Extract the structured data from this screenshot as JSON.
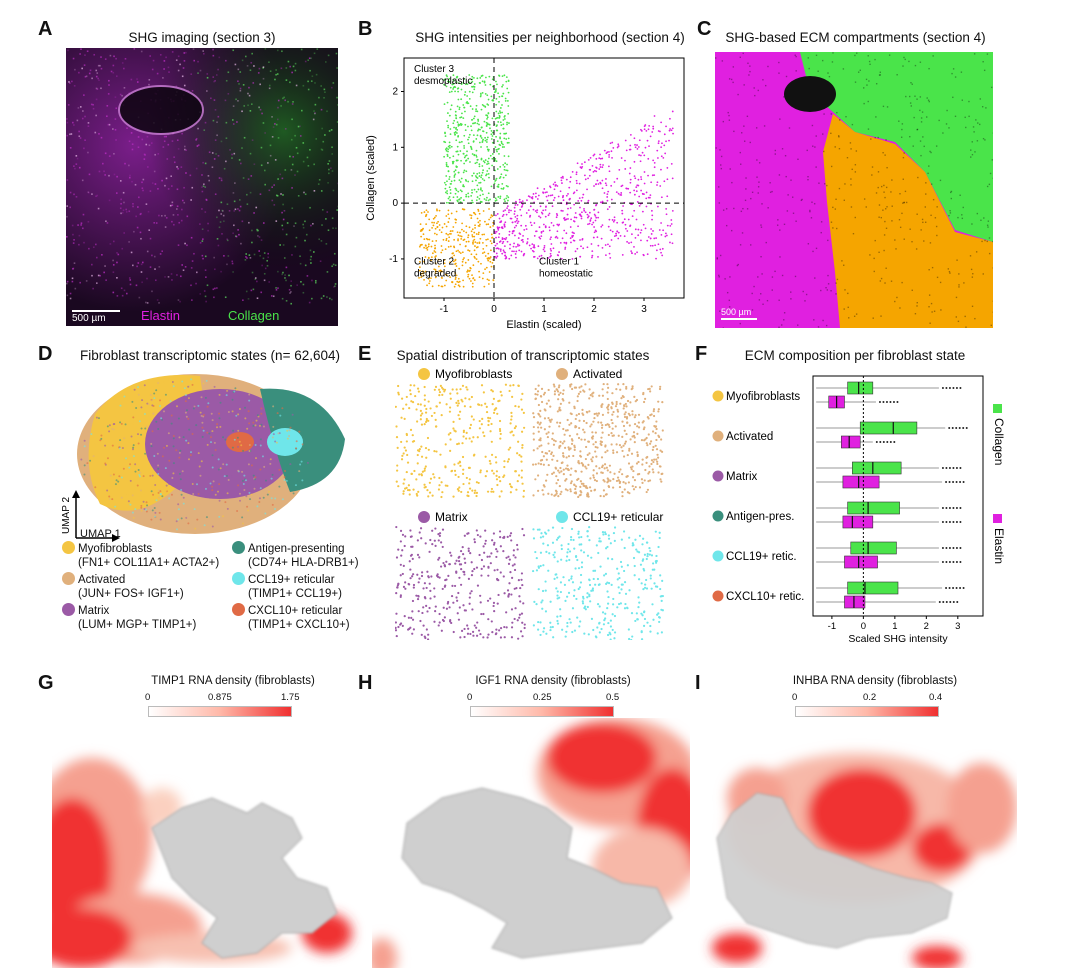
{
  "panels": {
    "A": {
      "letter": "A",
      "title": "SHG imaging (section 3)",
      "scale_label": "500 µm",
      "legend_elastin": "Elastin",
      "legend_collagen": "Collagen"
    },
    "B": {
      "letter": "B",
      "title": "SHG intensities per neighborhood (section 4)"
    },
    "C": {
      "letter": "C",
      "title": "SHG-based ECM compartments (section 4)",
      "scale_label": "500 µm"
    },
    "D": {
      "letter": "D",
      "title": "Fibroblast transcriptomic states (n= 62,604)",
      "axis_y": "UMAP 2",
      "axis_x": "UMAP 1"
    },
    "E": {
      "letter": "E",
      "title": "Spatial distribution of transcriptomic states"
    },
    "F": {
      "letter": "F",
      "title": "ECM composition per fibroblast state"
    },
    "G": {
      "letter": "G",
      "title": "TIMP1 RNA density (fibroblasts)",
      "ticks": [
        "0",
        "0.875",
        "1.75"
      ]
    },
    "H": {
      "letter": "H",
      "title": "IGF1 RNA density (fibroblasts)",
      "ticks": [
        "0",
        "0.25",
        "0.5"
      ]
    },
    "I": {
      "letter": "I",
      "title": "INHBA RNA density (fibroblasts)",
      "ticks": [
        "0",
        "0.2",
        "0.4"
      ]
    }
  },
  "colors": {
    "elastin": "#e020e0",
    "collagen": "#4ae44a",
    "degraded": "#f5a500",
    "myofibroblasts": "#f4c542",
    "activated": "#e0b07c",
    "matrix": "#9b5aa6",
    "antigen": "#3a8f7d",
    "ccl19": "#6fe6ea",
    "cxcl10": "#e06a45"
  },
  "states_legend": [
    {
      "name": "Myofibroblasts",
      "markers": "(FN1+ COL11A1+ ACTA2+)",
      "color": "#f4c542"
    },
    {
      "name": "Activated",
      "markers": "(JUN+ FOS+ IGF1+)",
      "color": "#e0b07c"
    },
    {
      "name": "Matrix",
      "markers": "(LUM+ MGP+ TIMP1+)",
      "color": "#9b5aa6"
    },
    {
      "name": "Antigen-presenting",
      "markers": "(CD74+ HLA-DRB1+)",
      "color": "#3a8f7d"
    },
    {
      "name": "CCL19+ reticular",
      "markers": "(TIMP1+ CCL19+)",
      "color": "#6fe6ea"
    },
    {
      "name": "CXCL10+ reticular",
      "markers": "(TIMP1+ CXCL10+)",
      "color": "#e06a45"
    }
  ],
  "spatial_panels": [
    {
      "label": "Myofibroblasts",
      "color": "#f4c542"
    },
    {
      "label": "Activated",
      "color": "#e0b07c"
    },
    {
      "label": "Matrix",
      "color": "#9b5aa6"
    },
    {
      "label": "CCL19+ reticular",
      "color": "#6fe6ea"
    }
  ],
  "chart_data": [
    {
      "type": "scatter",
      "title": "SHG intensities per neighborhood (section 4)",
      "xlabel": "Elastin (scaled)",
      "ylabel": "Collagen (scaled)",
      "xlim": [
        -1.8,
        3.8
      ],
      "ylim": [
        -1.7,
        2.6
      ],
      "xticks": [
        "-1",
        "0",
        "1",
        "2",
        "3"
      ],
      "yticks": [
        "-1",
        "0",
        "1",
        "2"
      ],
      "clusters": [
        {
          "name": "Cluster 3 desmoplastic",
          "label_line1": "Cluster 3",
          "label_line2": "desmoplastic",
          "color": "#4ae44a"
        },
        {
          "name": "Cluster 2 degraded",
          "label_line1": "Cluster 2",
          "label_line2": "degraded",
          "color": "#f5a500"
        },
        {
          "name": "Cluster 1 homeostatic",
          "label_line1": "Cluster 1",
          "label_line2": "homeostatic",
          "color": "#e020e0"
        }
      ]
    },
    {
      "type": "box",
      "title": "ECM composition per fibroblast state",
      "xlabel": "Scaled SHG intensity",
      "xlim": [
        -1.6,
        3.8
      ],
      "xticks": [
        "-1",
        "0",
        "1",
        "2",
        "3"
      ],
      "legend": [
        {
          "name": "Collagen",
          "color": "#4ae44a"
        },
        {
          "name": "Elastin",
          "color": "#e020e0"
        }
      ],
      "categories": [
        {
          "name": "Myofibroblasts",
          "color": "#f4c542",
          "collagen": {
            "q1": -0.5,
            "median": -0.15,
            "q3": 0.3,
            "wlo": -1.5,
            "whi": 2.4
          },
          "elastin": {
            "q1": -1.1,
            "median": -0.85,
            "q3": -0.6,
            "wlo": -1.5,
            "whi": 0.4
          }
        },
        {
          "name": "Activated",
          "color": "#e0b07c",
          "collagen": {
            "q1": -0.1,
            "median": 0.95,
            "q3": 1.7,
            "wlo": -1.5,
            "whi": 2.6
          },
          "elastin": {
            "q1": -0.7,
            "median": -0.45,
            "q3": -0.1,
            "wlo": -1.5,
            "whi": 0.3
          }
        },
        {
          "name": "Matrix",
          "color": "#9b5aa6",
          "collagen": {
            "q1": -0.35,
            "median": 0.3,
            "q3": 1.2,
            "wlo": -1.5,
            "whi": 2.4
          },
          "elastin": {
            "q1": -0.65,
            "median": -0.15,
            "q3": 0.5,
            "wlo": -1.5,
            "whi": 2.5
          }
        },
        {
          "name": "Antigen-pres.",
          "color": "#3a8f7d",
          "collagen": {
            "q1": -0.5,
            "median": 0.15,
            "q3": 1.15,
            "wlo": -1.5,
            "whi": 2.4
          },
          "elastin": {
            "q1": -0.65,
            "median": -0.35,
            "q3": 0.3,
            "wlo": -1.5,
            "whi": 2.4
          }
        },
        {
          "name": "CCL19+ retic.",
          "color": "#6fe6ea",
          "collagen": {
            "q1": -0.4,
            "median": 0.15,
            "q3": 1.05,
            "wlo": -1.5,
            "whi": 2.4
          },
          "elastin": {
            "q1": -0.6,
            "median": -0.15,
            "q3": 0.45,
            "wlo": -1.5,
            "whi": 2.4
          }
        },
        {
          "name": "CXCL10+ retic.",
          "color": "#e06a45",
          "collagen": {
            "q1": -0.5,
            "median": 0.05,
            "q3": 1.1,
            "wlo": -1.5,
            "whi": 2.5
          },
          "elastin": {
            "q1": -0.6,
            "median": -0.3,
            "q3": 0.05,
            "wlo": -1.5,
            "whi": 2.3
          }
        }
      ]
    }
  ]
}
